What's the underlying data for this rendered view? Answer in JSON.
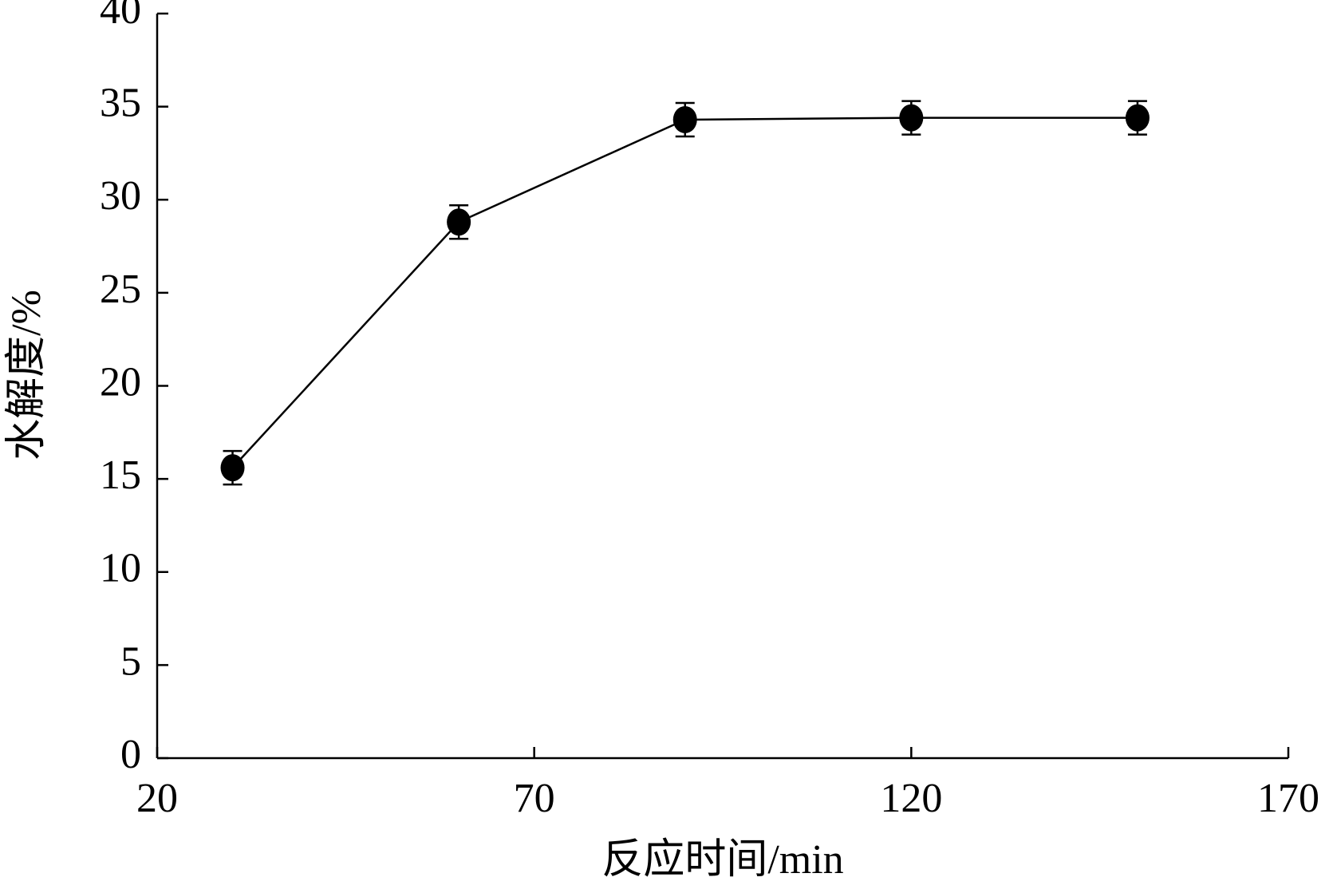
{
  "chart_data": {
    "type": "line",
    "x_label": "反应时间/min",
    "y_label": "水解度/%",
    "x": [
      30,
      60,
      90,
      120,
      150
    ],
    "series": [
      {
        "color": "#000000",
        "values": [
          15.6,
          28.8,
          34.3,
          34.4,
          34.4
        ],
        "errors": [
          0.9,
          0.9,
          0.9,
          0.9,
          0.9
        ]
      }
    ],
    "xlim": [
      20,
      170
    ],
    "xticks": [
      20,
      70,
      120,
      170
    ],
    "ylim": [
      0,
      40
    ],
    "yticks": [
      0,
      5,
      10,
      15,
      20,
      25,
      30,
      35,
      40
    ],
    "grid": false
  }
}
